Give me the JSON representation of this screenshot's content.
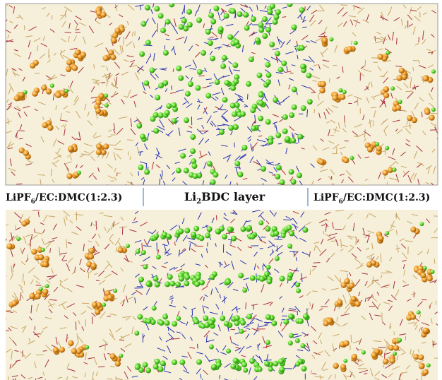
{
  "labels": {
    "left": [
      "LiPF",
      "6",
      "/EC:DMC(1:2.3)"
    ],
    "center": [
      "Li",
      "2",
      "BDC layer"
    ],
    "right": [
      "LiPF",
      "6",
      "/EC:DMC(1:2.3)"
    ]
  }
}
